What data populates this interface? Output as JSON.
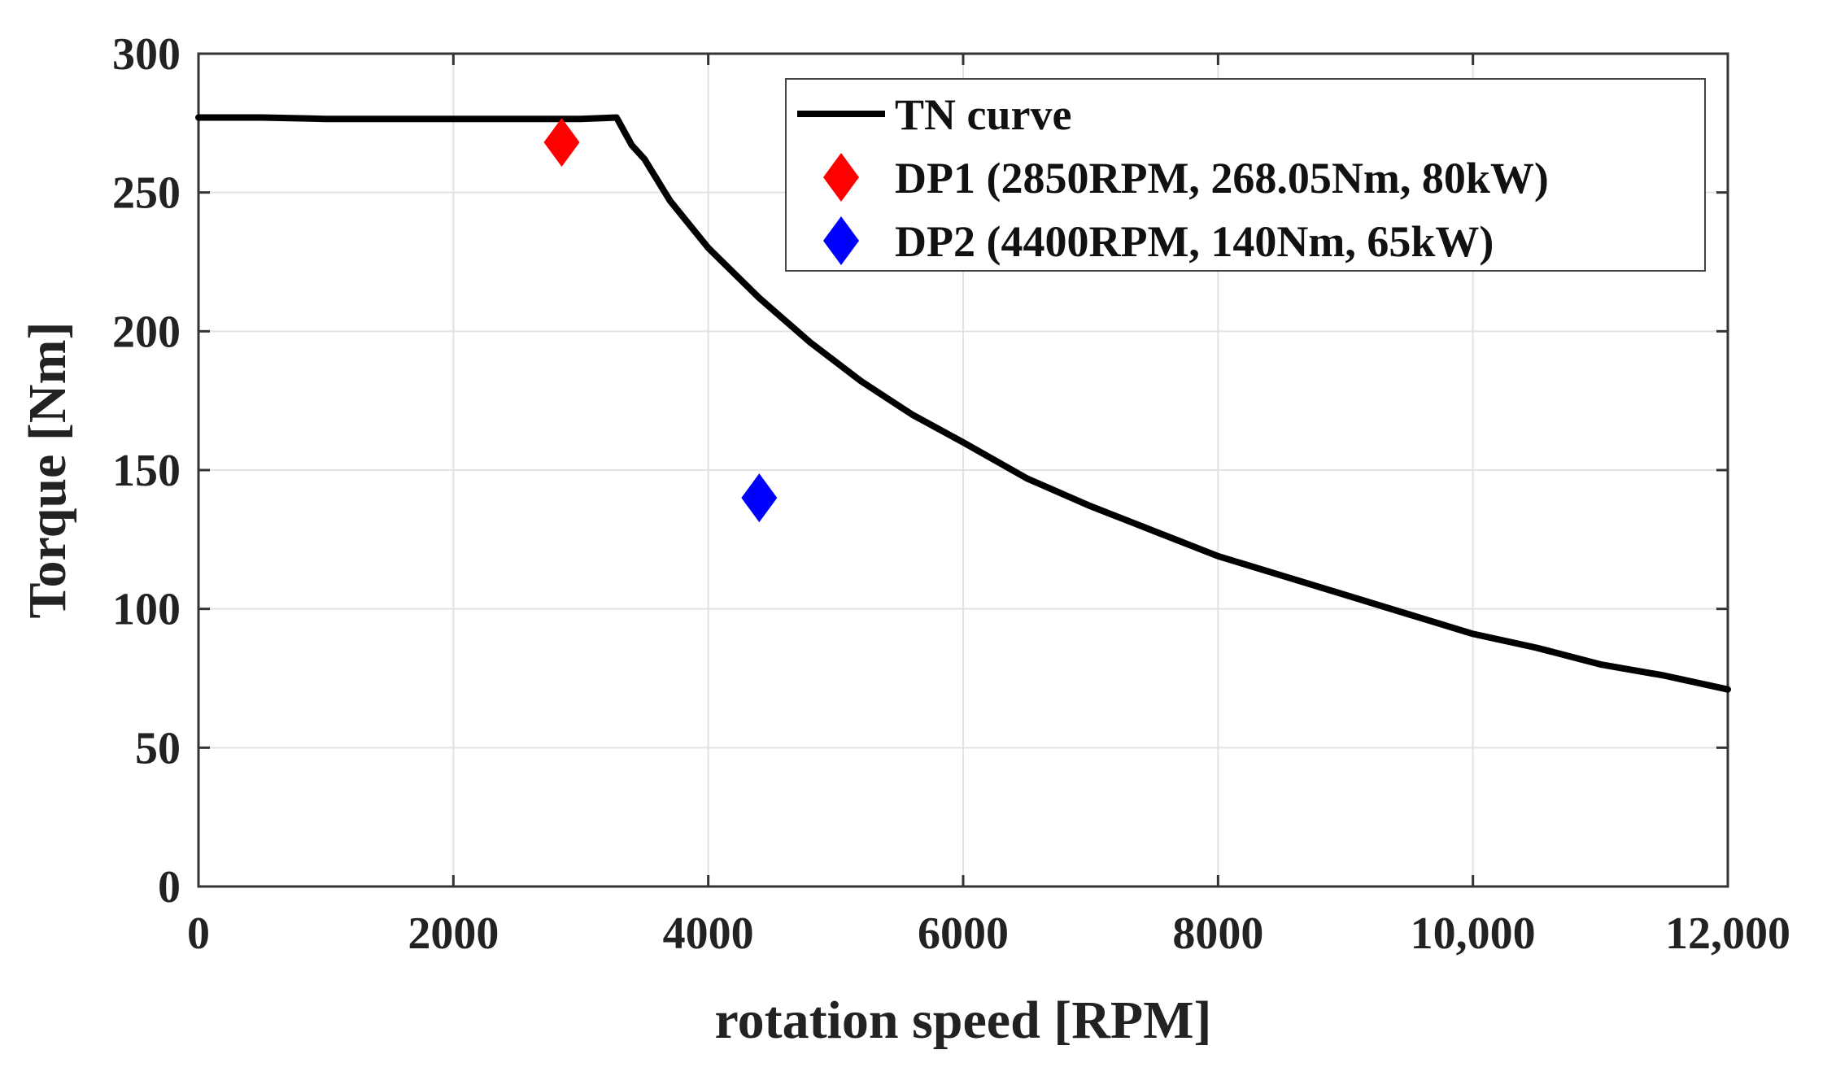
{
  "chart_data": {
    "type": "line",
    "title": "",
    "xlabel": "rotation speed [RPM]",
    "ylabel": "Torque [Nm]",
    "xlim": [
      0,
      12000
    ],
    "ylim": [
      0,
      300
    ],
    "grid": true,
    "x_ticks": [
      0,
      2000,
      4000,
      6000,
      8000,
      10000,
      12000
    ],
    "x_tick_labels": [
      "0",
      "2000",
      "4000",
      "6000",
      "8000",
      "10,000",
      "12,000"
    ],
    "y_ticks": [
      0,
      50,
      100,
      150,
      200,
      250,
      300
    ],
    "y_tick_labels": [
      "0",
      "50",
      "100",
      "150",
      "200",
      "250",
      "300"
    ],
    "legend_position": "top-right",
    "series": [
      {
        "name": "TN curve",
        "kind": "line",
        "color": "#000000",
        "x": [
          0,
          500,
          1000,
          1500,
          2000,
          2500,
          3000,
          3280,
          3400,
          3500,
          3700,
          4000,
          4400,
          4800,
          5200,
          5600,
          6000,
          6500,
          7000,
          7500,
          8000,
          8500,
          9000,
          9500,
          10000,
          10500,
          11000,
          11500,
          12000
        ],
        "y": [
          277,
          277,
          276.5,
          276.5,
          276.5,
          276.5,
          276.5,
          277,
          267,
          262,
          247,
          230,
          212,
          196,
          182,
          170,
          160,
          147,
          137,
          128,
          119,
          112,
          105,
          98,
          91,
          86,
          80,
          76,
          71
        ]
      },
      {
        "name": "DP1 (2850RPM, 268.05Nm, 80kW)",
        "kind": "scatter",
        "marker": "diamond",
        "color": "#ff0000",
        "x": [
          2850
        ],
        "y": [
          268.05
        ]
      },
      {
        "name": "DP2 (4400RPM, 140Nm, 65kW)",
        "kind": "scatter",
        "marker": "diamond",
        "color": "#0000ff",
        "x": [
          4400
        ],
        "y": [
          140
        ]
      }
    ]
  }
}
